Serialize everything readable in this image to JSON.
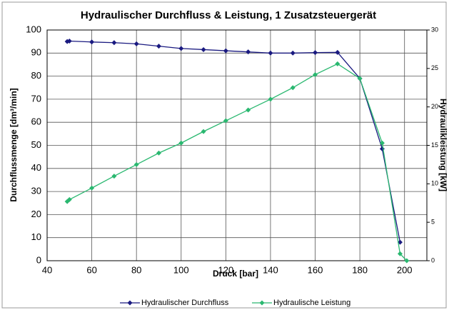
{
  "chart_data": {
    "type": "line",
    "title": "Hydraulischer Durchfluss & Leistung, 1 Zusatzsteuergerät",
    "xlabel": "Druck [bar]",
    "ylabel": "Durchflussmenge [dm³/min]",
    "y2label": "Hydraulikleistung [kW]",
    "xlim": [
      40,
      210
    ],
    "xticks": [
      40,
      60,
      80,
      100,
      120,
      140,
      160,
      180,
      200
    ],
    "ylim": [
      0,
      100
    ],
    "yticks": [
      0,
      10,
      20,
      30,
      40,
      50,
      60,
      70,
      80,
      90,
      100
    ],
    "y2lim": [
      0,
      30
    ],
    "y2ticks": [
      0,
      5,
      10,
      15,
      20,
      25,
      30
    ],
    "grid": true,
    "legend": "bottom",
    "series": [
      {
        "name": "Hydraulischer Durchfluss",
        "color": "#1a1a80",
        "x": [
          49,
          50,
          60,
          70,
          80,
          90,
          100,
          110,
          120,
          130,
          140,
          150,
          160,
          170,
          180,
          190,
          198
        ],
        "values": [
          95,
          95.2,
          94.8,
          94.5,
          94,
          93,
          92,
          91.5,
          91,
          90.5,
          90,
          90,
          90.2,
          90.3,
          79,
          48.5,
          8
        ]
      },
      {
        "name": "Hydraulische Leistung",
        "color": "#2ab870",
        "axis": "y2",
        "x": [
          49,
          50,
          60,
          70,
          80,
          90,
          100,
          110,
          120,
          130,
          140,
          150,
          160,
          170,
          180,
          190,
          198,
          201
        ],
        "values": [
          7.7,
          7.95,
          9.45,
          11,
          12.5,
          14,
          15.3,
          16.8,
          18.2,
          19.6,
          21,
          22.5,
          24.2,
          25.6,
          23.7,
          15.3,
          0.9,
          0
        ]
      }
    ]
  }
}
